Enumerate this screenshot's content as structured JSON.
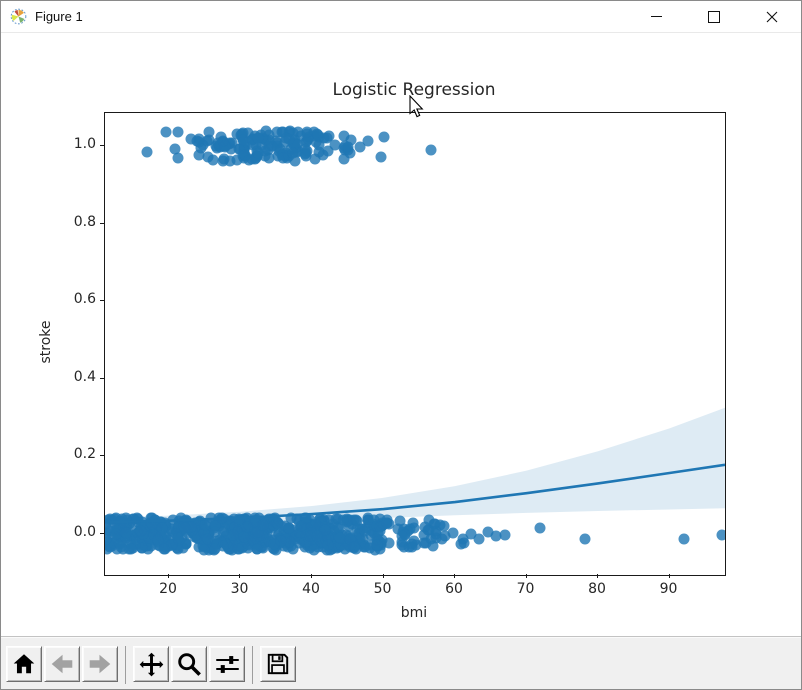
{
  "window": {
    "title": "Figure 1",
    "controls": {
      "minimize": "minimize",
      "maximize": "maximize",
      "close": "close"
    }
  },
  "toolbar": {
    "buttons": [
      {
        "label": "Home",
        "icon": "home-icon",
        "enabled": true
      },
      {
        "label": "Back",
        "icon": "back-arrow-icon",
        "enabled": false
      },
      {
        "label": "Forward",
        "icon": "forward-arrow-icon",
        "enabled": false
      },
      {
        "label": "Pan",
        "icon": "pan-arrows-icon",
        "enabled": true
      },
      {
        "label": "Zoom",
        "icon": "zoom-magnifier-icon",
        "enabled": true
      },
      {
        "label": "Configure subplots",
        "icon": "sliders-icon",
        "enabled": true
      },
      {
        "label": "Save",
        "icon": "save-floppy-icon",
        "enabled": true
      }
    ]
  },
  "chart_data": {
    "type": "scatter",
    "title": "Logistic Regression",
    "xlabel": "bmi",
    "ylabel": "stroke",
    "xlim": [
      11.05,
      97.76
    ],
    "ylim": [
      -0.106,
      1.085
    ],
    "x_ticks": [
      20,
      30,
      40,
      50,
      60,
      70,
      80,
      90
    ],
    "x_tick_labels": [
      "20",
      "30",
      "40",
      "50",
      "60",
      "70",
      "80",
      "90"
    ],
    "y_ticks": [
      0.0,
      0.2,
      0.4,
      0.6,
      0.8,
      1.0
    ],
    "y_tick_labels": [
      "0.0",
      "0.2",
      "0.4",
      "0.6",
      "0.8",
      "1.0"
    ],
    "grid": false,
    "legend": null,
    "marker_color": "#1f77b4",
    "marker_alpha": 0.8,
    "marker_diameter_px": 11,
    "regression_line": {
      "color": "#1f77b4",
      "width": 2.6,
      "x": [
        11.05,
        20,
        30,
        40,
        50,
        60,
        70,
        80,
        90,
        97.76
      ],
      "y": [
        0.03,
        0.034,
        0.041,
        0.051,
        0.064,
        0.082,
        0.105,
        0.13,
        0.157,
        0.178
      ]
    },
    "confidence_band": {
      "fill": "#1f77b4",
      "opacity": 0.15,
      "x": [
        11.05,
        20,
        30,
        40,
        50,
        60,
        70,
        80,
        90,
        97.76
      ],
      "upper": [
        0.041,
        0.047,
        0.057,
        0.072,
        0.093,
        0.123,
        0.163,
        0.213,
        0.272,
        0.325
      ],
      "lower": [
        0.019,
        0.023,
        0.028,
        0.034,
        0.041,
        0.048,
        0.054,
        0.059,
        0.063,
        0.066
      ]
    },
    "jitter_seed": 7,
    "scatter_clusters": [
      {
        "name": "stroke-1-dense",
        "n": 150,
        "x_min": 18.5,
        "x_max": 46.5,
        "x_dist": "peaked",
        "y_center": 1.0,
        "y_jitter": 0.038
      },
      {
        "name": "stroke-1-loose",
        "n": 10,
        "x_min": 44.0,
        "x_max": 50.5,
        "x_dist": "uniform",
        "y_center": 1.0,
        "y_jitter": 0.03
      },
      {
        "name": "stroke-0-dense",
        "n": 600,
        "x_min": 11.2,
        "x_max": 50.0,
        "x_dist": "uniform",
        "y_center": 0.0,
        "y_jitter": 0.042
      },
      {
        "name": "stroke-0-tail",
        "n": 45,
        "x_min": 49.0,
        "x_max": 57.5,
        "x_dist": "uniform",
        "y_center": 0.0,
        "y_jitter": 0.035
      },
      {
        "name": "stroke-0-sparse",
        "n": 8,
        "x_min": 57.0,
        "x_max": 61.5,
        "x_dist": "uniform",
        "y_center": 0.0,
        "y_jitter": 0.028
      }
    ],
    "scatter_points": [
      [
        16.9,
        0.985
      ],
      [
        56.7,
        0.99
      ],
      [
        62.3,
        0.0
      ],
      [
        63.4,
        -0.012
      ],
      [
        64.6,
        0.004
      ],
      [
        65.8,
        -0.006
      ],
      [
        67.0,
        -0.002
      ],
      [
        71.9,
        0.016
      ],
      [
        78.2,
        -0.014
      ],
      [
        92.0,
        -0.014
      ],
      [
        97.4,
        -0.004
      ]
    ]
  }
}
